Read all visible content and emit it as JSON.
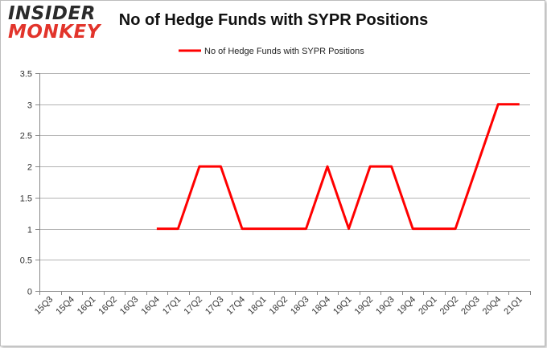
{
  "logo": {
    "line1": "INSIDER",
    "line2": "MONKEY"
  },
  "chart_data": {
    "type": "line",
    "title": "No of Hedge Funds with SYPR Positions",
    "xlabel": "",
    "ylabel": "",
    "categories": [
      "15Q3",
      "15Q4",
      "16Q1",
      "16Q2",
      "16Q3",
      "16Q4",
      "17Q1",
      "17Q2",
      "17Q3",
      "17Q4",
      "18Q1",
      "18Q2",
      "18Q3",
      "18Q4",
      "19Q1",
      "19Q2",
      "19Q3",
      "19Q4",
      "20Q1",
      "20Q2",
      "20Q3",
      "20Q4",
      "21Q1"
    ],
    "series": [
      {
        "name": "No of Hedge Funds with SYPR Positions",
        "color": "#ff0000",
        "values": [
          null,
          null,
          null,
          null,
          null,
          1,
          1,
          2,
          2,
          1,
          1,
          1,
          1,
          2,
          1,
          2,
          2,
          1,
          1,
          1,
          2,
          3,
          3
        ]
      }
    ],
    "ylim": [
      0,
      3.5
    ],
    "yticks": [
      0,
      0.5,
      1,
      1.5,
      2,
      2.5,
      3,
      3.5
    ],
    "ytick_labels": [
      "0",
      "0.5",
      "1",
      "1.5",
      "2",
      "2.5",
      "3",
      "3.5"
    ],
    "grid": true,
    "legend_position": "top-center"
  }
}
